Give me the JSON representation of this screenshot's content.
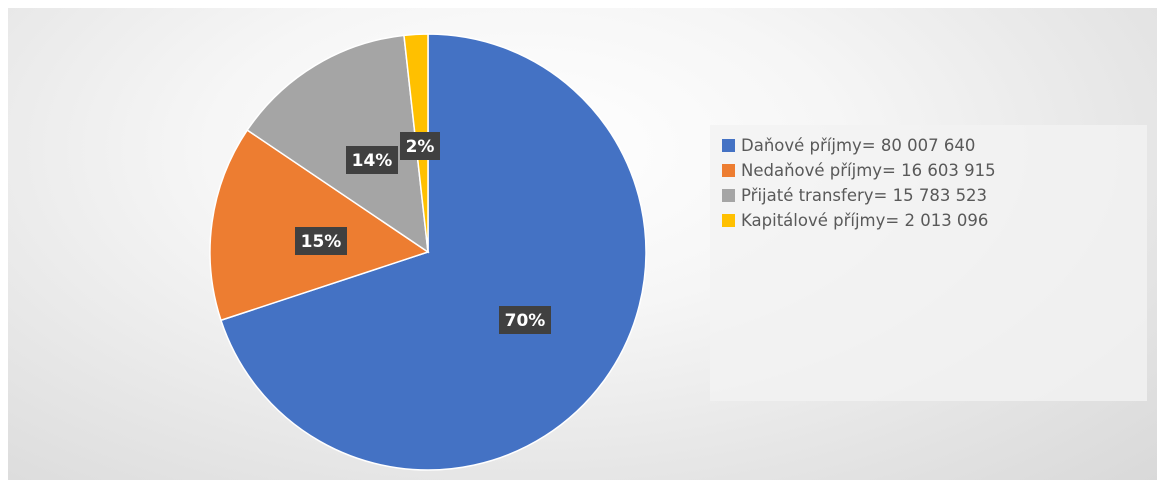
{
  "chart_data": {
    "type": "pie",
    "slices": [
      {
        "name": "Daňové příjmy= 80 007 640",
        "value": 80007640,
        "label": "70%",
        "color": "#4472c4"
      },
      {
        "name": "Nedaňové příjmy= 16 603 915",
        "value": 16603915,
        "label": "15%",
        "color": "#ed7d31"
      },
      {
        "name": "Přijaté transfery= 15 783 523",
        "value": 15783523,
        "label": "14%",
        "color": "#a5a5a5"
      },
      {
        "name": "Kapitálové příjmy= 2 013 096",
        "value": 2013096,
        "label": "2%",
        "color": "#ffc000"
      }
    ],
    "start_angle": "12 o'clock",
    "direction": "clockwise",
    "legend_position": "right",
    "data_labels": "percent, white on dark box"
  }
}
